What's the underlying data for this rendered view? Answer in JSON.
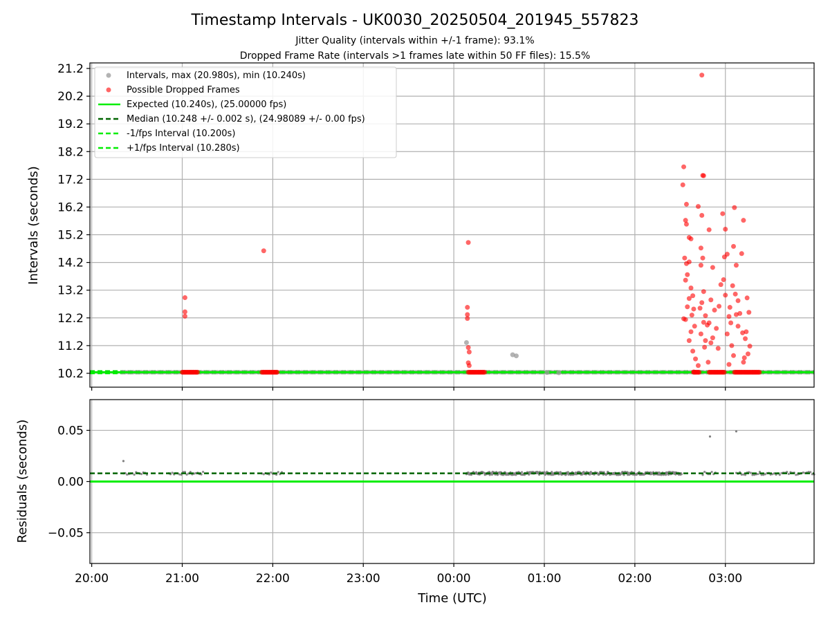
{
  "chart_data": [
    {
      "type": "scatter",
      "title": "Timestamp Intervals - UK0030_20250504_201945_557823",
      "subtitles": [
        "Jitter Quality (intervals within +/-1 frame): 93.1%",
        "Dropped Frame Rate (intervals >1 frames late within 50 FF files): 15.5%"
      ],
      "xlabel": "",
      "ylabel": "Intervals (seconds)",
      "x_unit": "hours after 20:00 UTC",
      "xlim": [
        -0.02,
        7.98
      ],
      "ylim": [
        9.7,
        21.4
      ],
      "y_ticks": [
        "10.2",
        "11.2",
        "12.2",
        "13.2",
        "14.2",
        "15.2",
        "16.2",
        "17.2",
        "18.2",
        "19.2",
        "20.2",
        "21.2"
      ],
      "x_ticks": [
        "20:00",
        "21:00",
        "22:00",
        "23:00",
        "00:00",
        "01:00",
        "02:00",
        "03:00"
      ],
      "grid": true,
      "legend_position": "top-left",
      "legend": [
        "Intervals, max (20.980s), min (10.240s)",
        "Possible Dropped Frames",
        "Expected (10.240s), (25.00000 fps)",
        "Median (10.248 +/- 0.002 s), (24.98089 +/- 0.00 fps)",
        "-1/fps Interval (10.200s)",
        "+1/fps Interval (10.280s)"
      ],
      "reference_lines": {
        "expected": 10.24,
        "median": 10.248,
        "minus_one_frame": 10.2,
        "plus_one_frame": 10.28
      },
      "interval_baseline": {
        "x_start": 0.34,
        "x_end": 7.98,
        "y": 10.24
      },
      "series": [
        {
          "role": "intervals",
          "color": "#999999",
          "points": [
            [
              4.14,
              11.31
            ],
            [
              4.65,
              10.87
            ],
            [
              4.69,
              10.83
            ],
            [
              5.03,
              10.23
            ],
            [
              5.16,
              10.22
            ]
          ]
        },
        {
          "role": "dropped",
          "color": "#ff0000",
          "points": [
            [
              1.03,
              12.93
            ],
            [
              1.03,
              12.42
            ],
            [
              1.03,
              12.26
            ],
            [
              1.9,
              14.62
            ],
            [
              4.16,
              14.92
            ],
            [
              4.15,
              12.58
            ],
            [
              4.15,
              12.32
            ],
            [
              4.15,
              12.18
            ],
            [
              4.16,
              11.13
            ],
            [
              4.17,
              10.97
            ],
            [
              4.16,
              10.58
            ],
            [
              4.17,
              10.48
            ],
            [
              6.54,
              17.65
            ],
            [
              6.53,
              17.0
            ],
            [
              6.57,
              16.3
            ],
            [
              6.56,
              15.72
            ],
            [
              6.57,
              15.58
            ],
            [
              6.6,
              15.1
            ],
            [
              6.62,
              15.05
            ],
            [
              6.55,
              14.36
            ],
            [
              6.57,
              14.16
            ],
            [
              6.6,
              14.22
            ],
            [
              6.58,
              13.76
            ],
            [
              6.56,
              13.56
            ],
            [
              6.62,
              13.28
            ],
            [
              6.64,
              13.0
            ],
            [
              6.6,
              12.9
            ],
            [
              6.58,
              12.6
            ],
            [
              6.65,
              12.52
            ],
            [
              6.56,
              12.14
            ],
            [
              6.54,
              12.17
            ],
            [
              6.63,
              12.3
            ],
            [
              6.66,
              11.9
            ],
            [
              6.62,
              11.7
            ],
            [
              6.6,
              11.38
            ],
            [
              6.64,
              11.0
            ],
            [
              6.67,
              10.72
            ],
            [
              6.7,
              10.48
            ],
            [
              6.65,
              10.25
            ],
            [
              6.7,
              16.22
            ],
            [
              6.75,
              17.34
            ],
            [
              6.76,
              17.33
            ],
            [
              6.74,
              15.9
            ],
            [
              6.73,
              14.72
            ],
            [
              6.75,
              14.36
            ],
            [
              6.73,
              14.1
            ],
            [
              6.76,
              13.15
            ],
            [
              6.74,
              12.75
            ],
            [
              6.72,
              12.55
            ],
            [
              6.78,
              12.28
            ],
            [
              6.76,
              12.04
            ],
            [
              6.8,
              11.94
            ],
            [
              6.73,
              11.62
            ],
            [
              6.78,
              11.38
            ],
            [
              6.77,
              11.14
            ],
            [
              6.81,
              10.6
            ],
            [
              6.74,
              20.96
            ],
            [
              6.82,
              15.38
            ],
            [
              6.86,
              14.02
            ],
            [
              6.84,
              12.85
            ],
            [
              6.88,
              12.48
            ],
            [
              6.82,
              12.02
            ],
            [
              6.9,
              11.82
            ],
            [
              6.86,
              11.48
            ],
            [
              6.84,
              11.3
            ],
            [
              6.92,
              11.1
            ],
            [
              6.93,
              12.62
            ],
            [
              6.95,
              13.4
            ],
            [
              6.98,
              13.58
            ],
            [
              6.97,
              15.96
            ],
            [
              7.0,
              15.4
            ],
            [
              6.99,
              14.4
            ],
            [
              7.02,
              14.5
            ],
            [
              7.0,
              13.02
            ],
            [
              7.05,
              12.58
            ],
            [
              7.04,
              12.25
            ],
            [
              7.06,
              12.02
            ],
            [
              7.02,
              11.62
            ],
            [
              7.07,
              11.2
            ],
            [
              7.09,
              10.84
            ],
            [
              7.04,
              10.52
            ],
            [
              7.1,
              16.18
            ],
            [
              7.09,
              14.78
            ],
            [
              7.12,
              14.1
            ],
            [
              7.14,
              12.82
            ],
            [
              7.12,
              12.32
            ],
            [
              7.14,
              11.9
            ],
            [
              7.08,
              13.36
            ],
            [
              7.11,
              13.06
            ],
            [
              7.16,
              12.36
            ],
            [
              7.18,
              14.52
            ],
            [
              7.2,
              15.72
            ],
            [
              7.19,
              11.66
            ],
            [
              7.22,
              11.45
            ],
            [
              7.24,
              12.92
            ],
            [
              7.23,
              11.7
            ],
            [
              7.26,
              12.4
            ],
            [
              7.27,
              11.18
            ],
            [
              7.25,
              10.9
            ],
            [
              7.21,
              10.76
            ],
            [
              7.2,
              10.6
            ]
          ],
          "dense_runs": [
            [
              1.0,
              1.18
            ],
            [
              1.88,
              2.05
            ],
            [
              4.16,
              4.34
            ],
            [
              6.65,
              6.72
            ],
            [
              6.82,
              6.99
            ],
            [
              7.1,
              7.38
            ]
          ]
        }
      ]
    },
    {
      "type": "scatter",
      "title": "",
      "xlabel": "Time (UTC)",
      "ylabel": "Residuals (seconds)",
      "x_unit": "hours after 20:00 UTC",
      "xlim": [
        -0.02,
        7.98
      ],
      "ylim": [
        -0.08,
        0.08
      ],
      "y_ticks": [
        "−0.05",
        "0.00",
        "0.05"
      ],
      "x_ticks": [
        "20:00",
        "21:00",
        "22:00",
        "23:00",
        "00:00",
        "01:00",
        "02:00",
        "03:00"
      ],
      "grid": true,
      "reference_lines": {
        "expected": 0.0,
        "median": 0.008
      },
      "series": [
        {
          "role": "residuals",
          "color": "#808080",
          "outliers": [
            [
              0.35,
              0.02
            ],
            [
              6.83,
              0.044
            ],
            [
              7.12,
              0.049
            ]
          ],
          "band": {
            "value": 0.008,
            "spread": 0.0015
          },
          "dense_runs": [
            [
              0.35,
              0.62
            ],
            [
              0.85,
              1.25
            ],
            [
              1.88,
              2.12
            ],
            [
              4.14,
              6.52
            ],
            [
              6.75,
              6.9
            ],
            [
              7.12,
              7.98
            ]
          ]
        }
      ]
    }
  ]
}
